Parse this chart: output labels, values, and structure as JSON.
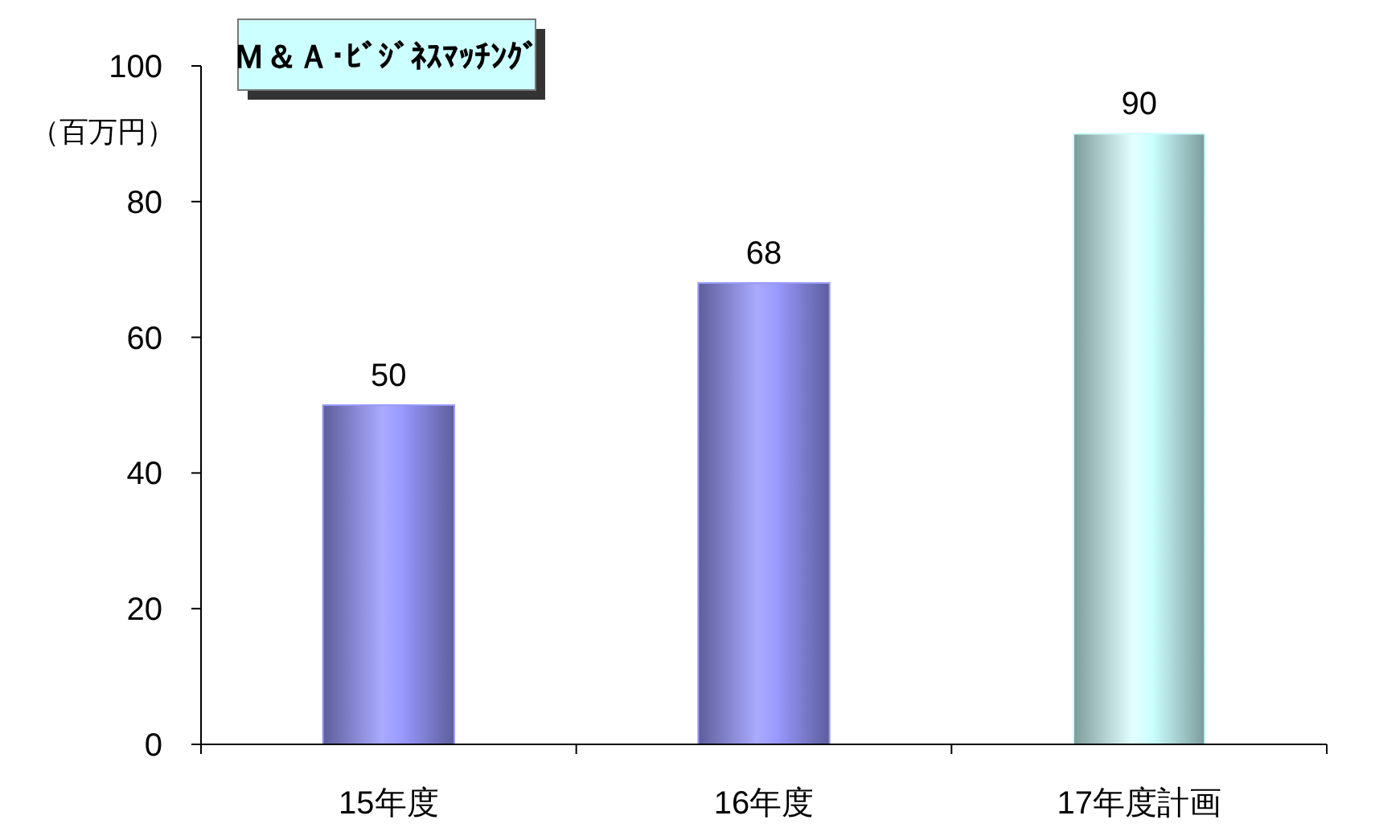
{
  "chart_data": {
    "type": "bar",
    "title": "Ｍ＆Ａ･ﾋﾞｼﾞﾈｽﾏｯﾁﾝｸﾞ",
    "ylabel": "（百万円）",
    "categories": [
      "15年度",
      "16年度",
      "17年度計画"
    ],
    "values": [
      50,
      68,
      90
    ],
    "colors": [
      "#9999ff",
      "#9999ff",
      "#ccffff"
    ],
    "ylim": [
      0,
      100
    ],
    "yticks": [
      0,
      20,
      40,
      60,
      80,
      100
    ],
    "data_labels": true,
    "grid": false
  }
}
